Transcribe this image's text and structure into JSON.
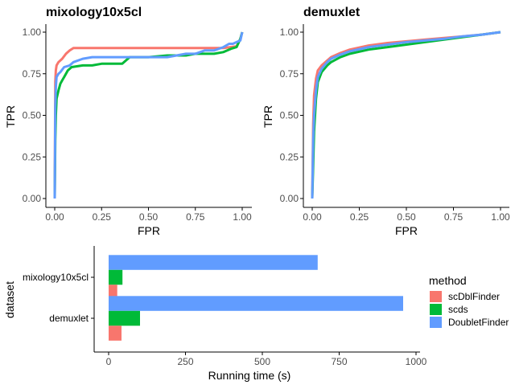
{
  "colors": {
    "scDblFinder": "#F8766D",
    "scds": "#00BA38",
    "DoubletFinder": "#619CFF",
    "axis": "#000000",
    "tick_text": "#4d4d4d"
  },
  "chart_data": [
    {
      "type": "line",
      "title": "mixology10x5cl",
      "xlabel": "FPR",
      "ylabel": "TPR",
      "xlim": [
        0,
        1
      ],
      "ylim": [
        0,
        1
      ],
      "xticks": [
        "0.00",
        "0.25",
        "0.50",
        "0.75",
        "1.00"
      ],
      "yticks": [
        "0.00",
        "0.25",
        "0.50",
        "0.75",
        "1.00"
      ],
      "grid": false,
      "series": [
        {
          "name": "scDblFinder",
          "x": [
            0,
            0.003,
            0.006,
            0.01,
            0.02,
            0.04,
            0.06,
            0.08,
            0.1,
            0.3,
            0.5,
            0.7,
            0.9,
            0.97,
            0.99,
            1.0
          ],
          "y": [
            0,
            0.7,
            0.77,
            0.8,
            0.82,
            0.84,
            0.87,
            0.89,
            0.905,
            0.905,
            0.905,
            0.905,
            0.905,
            0.915,
            0.96,
            1.0
          ]
        },
        {
          "name": "scds",
          "x": [
            0,
            0.003,
            0.006,
            0.01,
            0.02,
            0.03,
            0.04,
            0.05,
            0.07,
            0.09,
            0.15,
            0.2,
            0.25,
            0.3,
            0.36,
            0.4,
            0.5,
            0.6,
            0.7,
            0.75,
            0.85,
            0.9,
            0.94,
            0.97,
            0.99,
            1.0
          ],
          "y": [
            0,
            0.35,
            0.5,
            0.6,
            0.65,
            0.69,
            0.71,
            0.73,
            0.77,
            0.79,
            0.8,
            0.8,
            0.81,
            0.81,
            0.81,
            0.85,
            0.85,
            0.86,
            0.86,
            0.87,
            0.87,
            0.88,
            0.9,
            0.91,
            0.96,
            1.0
          ]
        },
        {
          "name": "DoubletFinder",
          "x": [
            0,
            0.003,
            0.006,
            0.01,
            0.02,
            0.03,
            0.05,
            0.08,
            0.1,
            0.15,
            0.2,
            0.3,
            0.4,
            0.5,
            0.6,
            0.7,
            0.75,
            0.8,
            0.85,
            0.9,
            0.93,
            0.95,
            0.97,
            0.99,
            1.0
          ],
          "y": [
            0,
            0.55,
            0.67,
            0.73,
            0.75,
            0.76,
            0.79,
            0.8,
            0.82,
            0.84,
            0.85,
            0.85,
            0.85,
            0.85,
            0.85,
            0.87,
            0.87,
            0.89,
            0.89,
            0.91,
            0.93,
            0.93,
            0.94,
            0.95,
            1.0
          ]
        }
      ]
    },
    {
      "type": "line",
      "title": "demuxlet",
      "xlabel": "FPR",
      "ylabel": "TPR",
      "xlim": [
        0,
        1
      ],
      "ylim": [
        0,
        1
      ],
      "xticks": [
        "0.00",
        "0.25",
        "0.50",
        "0.75",
        "1.00"
      ],
      "yticks": [
        "0.00",
        "0.25",
        "0.50",
        "0.75",
        "1.00"
      ],
      "grid": false,
      "series": [
        {
          "name": "scDblFinder",
          "x": [
            0,
            0.005,
            0.01,
            0.02,
            0.03,
            0.05,
            0.08,
            0.1,
            0.15,
            0.2,
            0.3,
            0.4,
            0.5,
            0.6,
            0.7,
            0.8,
            0.9,
            1.0
          ],
          "y": [
            0,
            0.45,
            0.62,
            0.72,
            0.77,
            0.8,
            0.83,
            0.85,
            0.875,
            0.895,
            0.92,
            0.935,
            0.945,
            0.955,
            0.965,
            0.975,
            0.985,
            1.0
          ]
        },
        {
          "name": "scds",
          "x": [
            0,
            0.005,
            0.01,
            0.02,
            0.03,
            0.05,
            0.08,
            0.1,
            0.15,
            0.2,
            0.3,
            0.4,
            0.5,
            0.6,
            0.7,
            0.8,
            0.9,
            1.0
          ],
          "y": [
            0,
            0.2,
            0.4,
            0.6,
            0.7,
            0.76,
            0.8,
            0.82,
            0.85,
            0.87,
            0.895,
            0.91,
            0.925,
            0.94,
            0.955,
            0.97,
            0.985,
            1.0
          ]
        },
        {
          "name": "DoubletFinder",
          "x": [
            0,
            0.005,
            0.01,
            0.02,
            0.03,
            0.05,
            0.08,
            0.1,
            0.15,
            0.2,
            0.3,
            0.4,
            0.5,
            0.6,
            0.7,
            0.8,
            0.9,
            1.0
          ],
          "y": [
            0,
            0.35,
            0.5,
            0.65,
            0.73,
            0.78,
            0.82,
            0.84,
            0.865,
            0.885,
            0.91,
            0.925,
            0.94,
            0.95,
            0.96,
            0.975,
            0.985,
            1.0
          ]
        }
      ]
    },
    {
      "type": "bar",
      "orientation": "horizontal",
      "xlabel": "Running time (s)",
      "ylabel": "dataset",
      "xlim": [
        0,
        1000
      ],
      "xticks": [
        "0",
        "250",
        "500",
        "750",
        "1000"
      ],
      "categories": [
        "mixology10x5cl",
        "demuxlet"
      ],
      "legend": {
        "title": "method",
        "entries": [
          "scDblFinder",
          "scds",
          "DoubletFinder"
        ],
        "placement": "right"
      },
      "series": [
        {
          "name": "scDblFinder",
          "values": [
            28,
            42
          ]
        },
        {
          "name": "scds",
          "values": [
            45,
            102
          ]
        },
        {
          "name": "DoubletFinder",
          "values": [
            680,
            958
          ]
        }
      ]
    }
  ]
}
